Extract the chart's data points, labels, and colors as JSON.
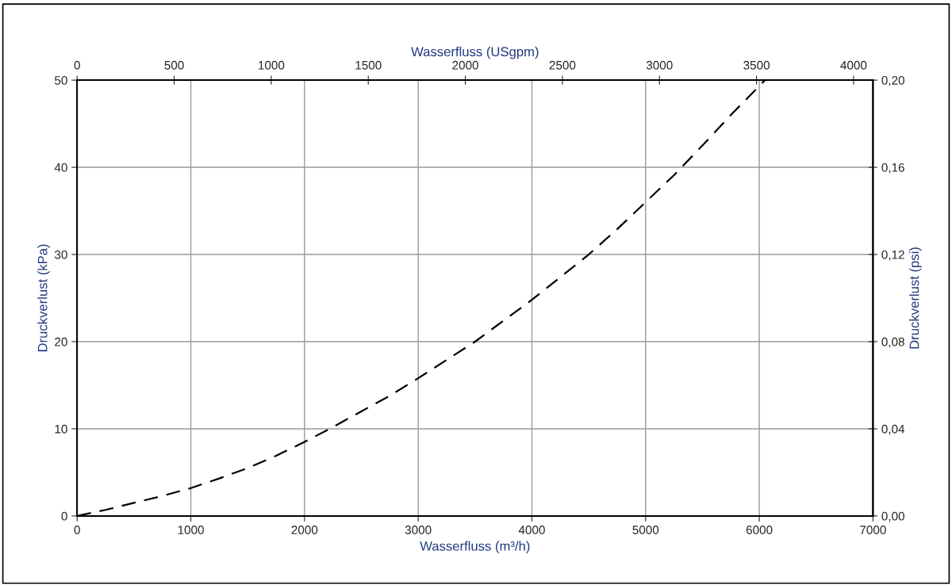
{
  "chart_data": {
    "type": "line",
    "xlabel": "Wasserfluss (m³/h)",
    "ylabel": "Druckverlust (kPa)",
    "y2label": "Druckverlust (psi)",
    "x2label": "Wasserfluss (USgpm)",
    "x": [
      0,
      250,
      500,
      750,
      1000,
      1250,
      1500,
      1750,
      2000,
      2250,
      2500,
      2750,
      3000,
      3250,
      3500,
      3750,
      4000,
      4250,
      4500,
      4750,
      5000,
      5250,
      5500,
      5750,
      6050
    ],
    "series": [
      {
        "color": "#000000",
        "line_style": "dashed",
        "marker": "none",
        "values": [
          0,
          0.7,
          1.5,
          2.3,
          3.2,
          4.3,
          5.5,
          6.9,
          8.5,
          10.2,
          12.0,
          13.8,
          15.8,
          17.9,
          20.0,
          22.4,
          24.8,
          27.4,
          30.0,
          32.9,
          36.0,
          39.1,
          42.5,
          46.0,
          50.0
        ]
      }
    ],
    "xlim": [
      0,
      7000
    ],
    "xticks": [
      0,
      1000,
      2000,
      3000,
      4000,
      5000,
      6000,
      7000
    ],
    "ylim": [
      0,
      50
    ],
    "yticks": [
      0,
      10,
      20,
      30,
      40,
      50
    ],
    "y2lim": [
      0,
      0.2
    ],
    "y2ticks": [
      {
        "value": 0,
        "label": "0,00"
      },
      {
        "value": 0.04,
        "label": "0,04"
      },
      {
        "value": 0.08,
        "label": "0,08"
      },
      {
        "value": 0.12,
        "label": "0,12"
      },
      {
        "value": 0.16,
        "label": "0,16"
      },
      {
        "value": 0.2,
        "label": "0,20"
      }
    ],
    "x2lim": [
      0,
      4100
    ],
    "x2ticks": [
      0,
      500,
      1000,
      1500,
      2000,
      2500,
      3000,
      3500,
      4000
    ],
    "grid": true,
    "legend": false
  }
}
